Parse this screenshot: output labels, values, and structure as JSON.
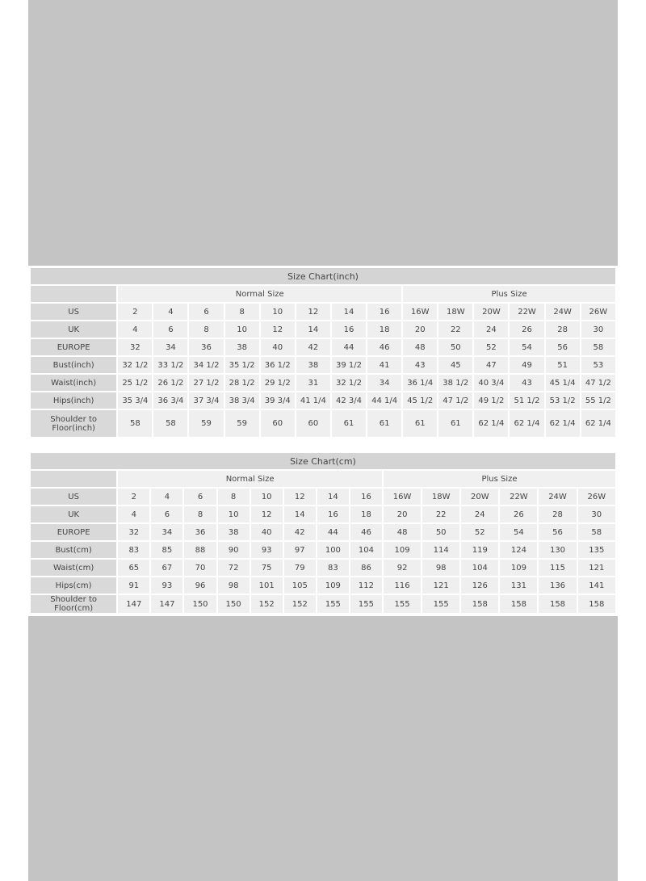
{
  "inch_chart": {
    "title": "Size Chart(inch)",
    "groups": [
      "Normal Size",
      "Plus Size"
    ],
    "rows": [
      {
        "label": "US",
        "values": [
          "2",
          "4",
          "6",
          "8",
          "10",
          "12",
          "14",
          "16",
          "16W",
          "18W",
          "20W",
          "22W",
          "24W",
          "26W"
        ]
      },
      {
        "label": "UK",
        "values": [
          "4",
          "6",
          "8",
          "10",
          "12",
          "14",
          "16",
          "18",
          "20",
          "22",
          "24",
          "26",
          "28",
          "30"
        ]
      },
      {
        "label": "EUROPE",
        "values": [
          "32",
          "34",
          "36",
          "38",
          "40",
          "42",
          "44",
          "46",
          "48",
          "50",
          "52",
          "54",
          "56",
          "58"
        ]
      },
      {
        "label": "Bust(inch)",
        "values": [
          "32 1/2",
          "33 1/2",
          "34 1/2",
          "35 1/2",
          "36 1/2",
          "38",
          "39 1/2",
          "41",
          "43",
          "45",
          "47",
          "49",
          "51",
          "53"
        ]
      },
      {
        "label": "Waist(inch)",
        "values": [
          "25 1/2",
          "26 1/2",
          "27 1/2",
          "28 1/2",
          "29 1/2",
          "31",
          "32 1/2",
          "34",
          "36 1/4",
          "38 1/2",
          "40 3/4",
          "43",
          "45 1/4",
          "47 1/2"
        ]
      },
      {
        "label": "Hips(inch)",
        "values": [
          "35 3/4",
          "36 3/4",
          "37 3/4",
          "38 3/4",
          "39 3/4",
          "41 1/4",
          "42 3/4",
          "44 1/4",
          "45 1/2",
          "47 1/2",
          "49 1/2",
          "51 1/2",
          "53 1/2",
          "55 1/2"
        ]
      },
      {
        "label": "Shoulder to Floor(inch)",
        "values": [
          "58",
          "58",
          "59",
          "59",
          "60",
          "60",
          "61",
          "61",
          "61",
          "61",
          "62 1/4",
          "62 1/4",
          "62 1/4",
          "62 1/4"
        ]
      }
    ]
  },
  "cm_chart": {
    "title": "Size Chart(cm)",
    "groups": [
      "Normal Size",
      "Plus Size"
    ],
    "rows": [
      {
        "label": "US",
        "values": [
          "2",
          "4",
          "6",
          "8",
          "10",
          "12",
          "14",
          "16",
          "16W",
          "18W",
          "20W",
          "22W",
          "24W",
          "26W"
        ]
      },
      {
        "label": "UK",
        "values": [
          "4",
          "6",
          "8",
          "10",
          "12",
          "14",
          "16",
          "18",
          "20",
          "22",
          "24",
          "26",
          "28",
          "30"
        ]
      },
      {
        "label": "EUROPE",
        "values": [
          "32",
          "34",
          "36",
          "38",
          "40",
          "42",
          "44",
          "46",
          "48",
          "50",
          "52",
          "54",
          "56",
          "58"
        ]
      },
      {
        "label": "Bust(cm)",
        "values": [
          "83",
          "85",
          "88",
          "90",
          "93",
          "97",
          "100",
          "104",
          "109",
          "114",
          "119",
          "124",
          "130",
          "135"
        ]
      },
      {
        "label": "Waist(cm)",
        "values": [
          "65",
          "67",
          "70",
          "72",
          "75",
          "79",
          "83",
          "86",
          "92",
          "98",
          "104",
          "109",
          "115",
          "121"
        ]
      },
      {
        "label": "Hips(cm)",
        "values": [
          "91",
          "93",
          "96",
          "98",
          "101",
          "105",
          "109",
          "112",
          "116",
          "121",
          "126",
          "131",
          "136",
          "141"
        ]
      },
      {
        "label": "Shoulder to Floor(cm)",
        "values": [
          "147",
          "147",
          "150",
          "150",
          "152",
          "152",
          "155",
          "155",
          "155",
          "155",
          "158",
          "158",
          "158",
          "158"
        ]
      }
    ]
  }
}
